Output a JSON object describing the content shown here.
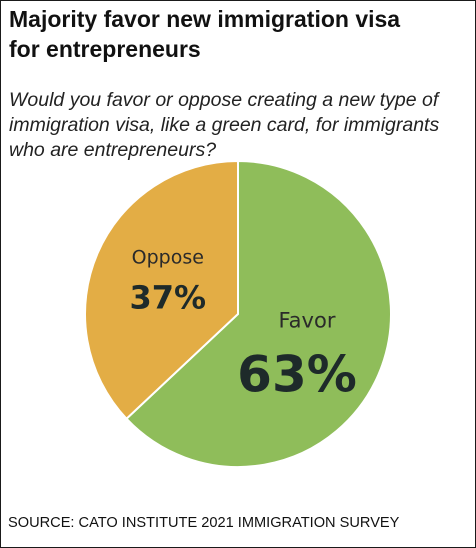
{
  "header": {
    "title_line1": "Majority favor new immigration visa",
    "title_line2": "for entrepreneurs",
    "subtitle_line1": "Would you favor or oppose creating a new type of",
    "subtitle_line2": "immigration visa, like a green card, for immigrants",
    "subtitle_line3": "who are entrepreneurs?"
  },
  "footer": {
    "source": "SOURCE: CATO INSTITUTE 2021 IMMIGRATION SURVEY"
  },
  "chart_data": {
    "type": "pie",
    "title": "Majority favor new immigration visa for entrepreneurs",
    "subtitle": "Would you favor or oppose creating a new type of immigration visa, like a green card, for immigrants who are entrepreneurs?",
    "unit": "%",
    "slices": [
      {
        "label": "Favor",
        "value": 63,
        "display": "63%",
        "color": "#8fbd5a"
      },
      {
        "label": "Oppose",
        "value": 37,
        "display": "37%",
        "color": "#e3ad45"
      }
    ],
    "start_angle_deg": 0,
    "direction": "clockwise",
    "legend": "none",
    "source": "SOURCE: CATO INSTITUTE 2021 IMMIGRATION SURVEY"
  }
}
